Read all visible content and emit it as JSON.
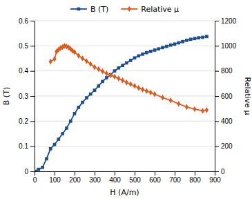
{
  "chart_data": {
    "type": "line",
    "xlabel": "H (A/m)",
    "ylabel": "B (T)",
    "y2label": "Relative μ",
    "series": [
      {
        "name": "B (T)",
        "color": "#1f4e8c",
        "marker": "square",
        "x": [
          0,
          20,
          40,
          60,
          80,
          100,
          120,
          140,
          160,
          180,
          200,
          220,
          240,
          260,
          280,
          300,
          320,
          340,
          360,
          380,
          400,
          420,
          440,
          460,
          480,
          500,
          520,
          540,
          560,
          580,
          600,
          620,
          640,
          660,
          680,
          700,
          720,
          740,
          760,
          780,
          800,
          820,
          840,
          860
        ],
        "values": [
          0.0,
          0.008,
          0.016,
          0.05,
          0.09,
          0.107,
          0.128,
          0.15,
          0.172,
          0.2,
          0.23,
          0.255,
          0.275,
          0.293,
          0.308,
          0.323,
          0.34,
          0.358,
          0.373,
          0.385,
          0.4,
          0.412,
          0.422,
          0.432,
          0.442,
          0.452,
          0.46,
          0.467,
          0.473,
          0.478,
          0.483,
          0.488,
          0.493,
          0.498,
          0.503,
          0.507,
          0.512,
          0.517,
          0.522,
          0.526,
          0.529,
          0.532,
          0.534,
          0.537
        ]
      },
      {
        "name": "Relative μ",
        "color": "#e05a1e",
        "marker": "diamond",
        "axis": "y2",
        "x": [
          80,
          100,
          110,
          120,
          130,
          140,
          150,
          160,
          170,
          180,
          190,
          200,
          220,
          240,
          260,
          280,
          300,
          320,
          340,
          360,
          380,
          400,
          420,
          440,
          460,
          480,
          500,
          520,
          540,
          560,
          580,
          600,
          640,
          680,
          720,
          760,
          800,
          840,
          860
        ],
        "values": [
          875,
          895,
          955,
          970,
          982,
          990,
          1000,
          995,
          988,
          975,
          960,
          950,
          922,
          900,
          878,
          855,
          830,
          815,
          797,
          780,
          765,
          755,
          740,
          725,
          708,
          695,
          680,
          665,
          652,
          640,
          628,
          615,
          588,
          565,
          538,
          513,
          496,
          482,
          488
        ]
      }
    ],
    "xlim": [
      0,
      900
    ],
    "xticks": [
      0,
      100,
      200,
      300,
      400,
      500,
      600,
      700,
      800,
      900
    ],
    "ylim": [
      0.0,
      0.6
    ],
    "yticks": [
      0.0,
      0.1,
      0.2,
      0.3,
      0.4,
      0.5,
      0.6
    ],
    "y2lim": [
      0,
      1200
    ],
    "y2ticks": [
      0,
      200,
      400,
      600,
      800,
      1000,
      1200
    ],
    "grid": "y",
    "legend": "top"
  }
}
